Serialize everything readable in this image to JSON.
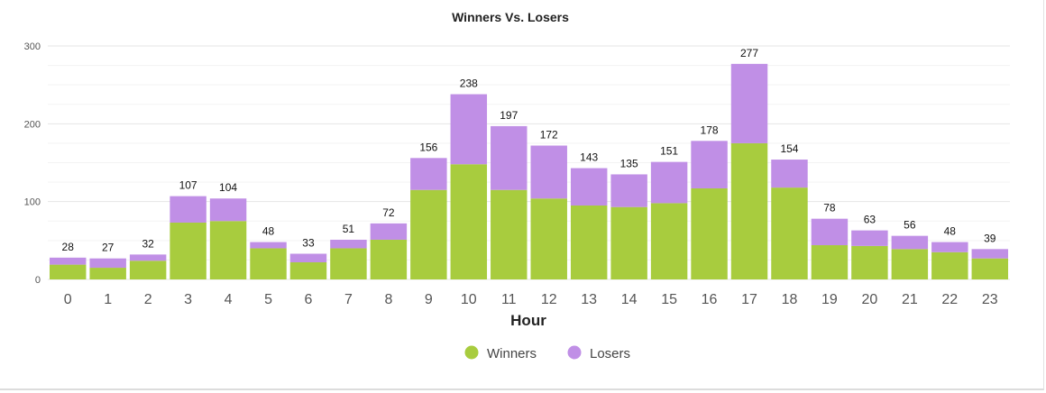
{
  "chart_data": {
    "type": "bar",
    "stacked": true,
    "title": "Winners Vs. Losers",
    "xlabel": "Hour",
    "ylabel": "",
    "ylim": [
      0,
      300
    ],
    "yticks": [
      0,
      100,
      200,
      300
    ],
    "grid": true,
    "legend_position": "bottom",
    "categories": [
      "0",
      "1",
      "2",
      "3",
      "4",
      "5",
      "6",
      "7",
      "8",
      "9",
      "10",
      "11",
      "12",
      "13",
      "14",
      "15",
      "16",
      "17",
      "18",
      "19",
      "20",
      "21",
      "22",
      "23"
    ],
    "series": [
      {
        "name": "Winners",
        "color": "#a8cc3e",
        "values": [
          19,
          15,
          24,
          73,
          75,
          40,
          22,
          40,
          51,
          115,
          148,
          115,
          104,
          95,
          93,
          98,
          117,
          175,
          118,
          44,
          43,
          39,
          35,
          27
        ]
      },
      {
        "name": "Losers",
        "color": "#c08fe6",
        "values": [
          9,
          12,
          8,
          34,
          29,
          8,
          11,
          11,
          21,
          41,
          90,
          82,
          68,
          48,
          42,
          53,
          61,
          102,
          36,
          34,
          20,
          17,
          13,
          12
        ]
      }
    ],
    "totals": [
      28,
      27,
      32,
      107,
      104,
      48,
      33,
      51,
      72,
      156,
      238,
      197,
      172,
      143,
      135,
      151,
      178,
      277,
      154,
      78,
      63,
      56,
      48,
      39
    ]
  }
}
